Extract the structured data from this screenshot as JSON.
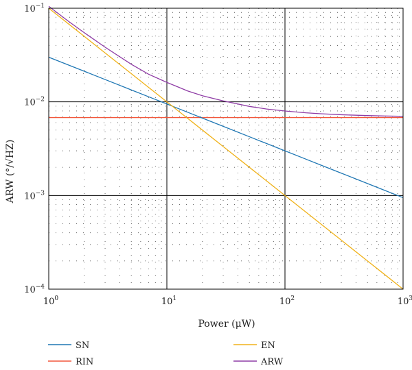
{
  "chart_data": {
    "type": "line",
    "xscale": "log",
    "yscale": "log",
    "xlim": [
      1,
      1000
    ],
    "ylim": [
      0.0001,
      0.1
    ],
    "xlabel": "Power (μW)",
    "ylabel": "ARW (°/√HZ)",
    "x_ticks": [
      {
        "value": 1,
        "mantissa": "10",
        "exp": "0"
      },
      {
        "value": 10,
        "mantissa": "10",
        "exp": "1"
      },
      {
        "value": 100,
        "mantissa": "10",
        "exp": "2"
      },
      {
        "value": 1000,
        "mantissa": "10",
        "exp": "3"
      }
    ],
    "y_ticks": [
      {
        "value": 0.0001,
        "mantissa": "10",
        "exp": "−4"
      },
      {
        "value": 0.001,
        "mantissa": "10",
        "exp": "−3"
      },
      {
        "value": 0.01,
        "mantissa": "10",
        "exp": "−2"
      },
      {
        "value": 0.1,
        "mantissa": "10",
        "exp": "−1"
      }
    ],
    "grid": {
      "major": true,
      "minor": "dotted"
    },
    "legend_placement": "below",
    "x": [
      1,
      1.5,
      2,
      3,
      5,
      7,
      10,
      15,
      20,
      30,
      50,
      70,
      100,
      150,
      200,
      300,
      500,
      700,
      1000
    ],
    "series": [
      {
        "name": "SN",
        "color": "#1f77b4",
        "values": [
          0.03,
          0.02449,
          0.02121,
          0.01732,
          0.01342,
          0.01134,
          0.009487,
          0.007746,
          0.006708,
          0.005477,
          0.004243,
          0.003586,
          0.003,
          0.002449,
          0.002121,
          0.001732,
          0.001342,
          0.001134,
          0.000949
        ]
      },
      {
        "name": "EN",
        "color": "#f0b21a",
        "values": [
          0.1,
          0.06667,
          0.05,
          0.03333,
          0.02,
          0.01429,
          0.01,
          0.006667,
          0.005,
          0.003333,
          0.002,
          0.001429,
          0.001,
          0.0006667,
          0.0005,
          0.0003333,
          0.0002,
          0.0001429,
          0.0001
        ]
      },
      {
        "name": "RIN",
        "color": "#f2573b",
        "values": [
          0.0068,
          0.0068,
          0.0068,
          0.0068,
          0.0068,
          0.0068,
          0.0068,
          0.0068,
          0.0068,
          0.0068,
          0.0068,
          0.0068,
          0.0068,
          0.0068,
          0.0068,
          0.0068,
          0.0068,
          0.0068,
          0.0068
        ]
      },
      {
        "name": "ARW",
        "color": "#8e3ba5",
        "values": [
          0.1047,
          0.07114,
          0.05474,
          0.03835,
          0.02522,
          0.01973,
          0.01615,
          0.01308,
          0.01163,
          0.01024,
          0.008939,
          0.00839,
          0.007989,
          0.00764,
          0.007464,
          0.007286,
          0.007135,
          0.00707,
          0.007007
        ]
      }
    ]
  }
}
